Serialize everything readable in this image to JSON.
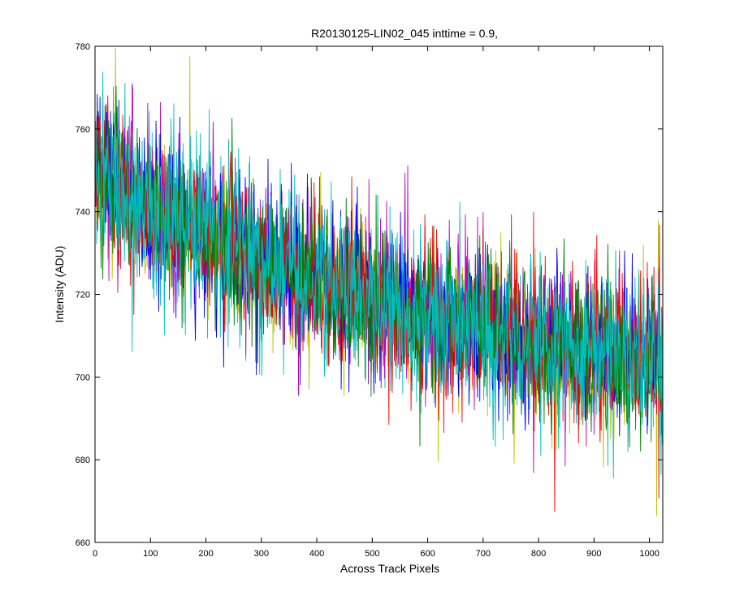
{
  "chart_data": {
    "type": "line",
    "title": "R20130125-LIN02_045 inttime = 0.9,",
    "xlabel": "Across Track Pixels",
    "ylabel": "Intensity (ADU)",
    "xlim": [
      0,
      1024
    ],
    "ylim": [
      660,
      780
    ],
    "xticks": [
      "0",
      "100",
      "200",
      "300",
      "400",
      "500",
      "600",
      "700",
      "800",
      "900",
      "1000"
    ],
    "yticks": [
      "660",
      "680",
      "700",
      "720",
      "740",
      "760",
      "780"
    ],
    "grid": false,
    "legend": "none",
    "series_colors": [
      "#0000ff",
      "#008000",
      "#ff0000",
      "#00bfbf",
      "#bf00bf",
      "#bfbf00"
    ],
    "trend": {
      "x": [
        0,
        100,
        200,
        300,
        400,
        500,
        600,
        700,
        800,
        900,
        1024
      ],
      "y": [
        750,
        740,
        734,
        728,
        723,
        719,
        714,
        712,
        708,
        706,
        705
      ]
    },
    "noise_amplitude": 12,
    "series": [
      {
        "color": "#00bfbf",
        "trend": "shared"
      },
      {
        "color": "#bfbf00",
        "trend": "shared"
      },
      {
        "color": "#bf00bf",
        "trend": "shared"
      },
      {
        "color": "#0000ff",
        "trend": "shared"
      },
      {
        "color": "#ff0000",
        "trend": "shared"
      },
      {
        "color": "#008000",
        "trend": "shared"
      },
      {
        "color": "#00bfbf",
        "trend": "shared"
      }
    ]
  }
}
